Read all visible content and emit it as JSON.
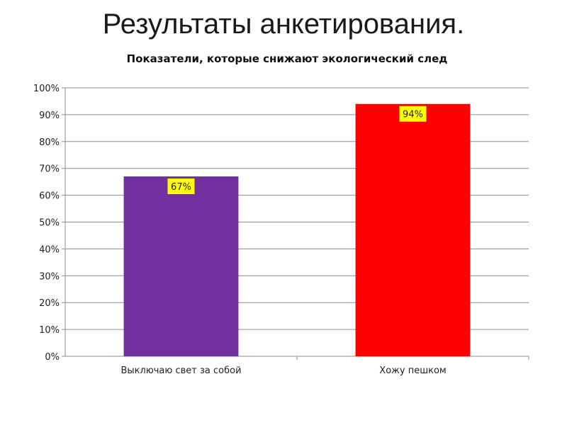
{
  "slide": {
    "title": "Результаты анкетирования."
  },
  "chart_data": {
    "type": "bar",
    "title": "Показатели, которые снижают экологический след",
    "categories": [
      "Выключаю свет за собой",
      "Хожу пешком"
    ],
    "values": [
      67,
      94
    ],
    "bar_colors": [
      "#7030a0",
      "#ff0000"
    ],
    "data_labels": [
      "67%",
      "94%"
    ],
    "data_label_background": "#ffff00",
    "ylim": [
      0,
      100
    ],
    "yticks": [
      "0%",
      "10%",
      "20%",
      "30%",
      "40%",
      "50%",
      "60%",
      "70%",
      "80%",
      "90%",
      "100%"
    ],
    "grid": true,
    "xlabel": "",
    "ylabel": ""
  }
}
